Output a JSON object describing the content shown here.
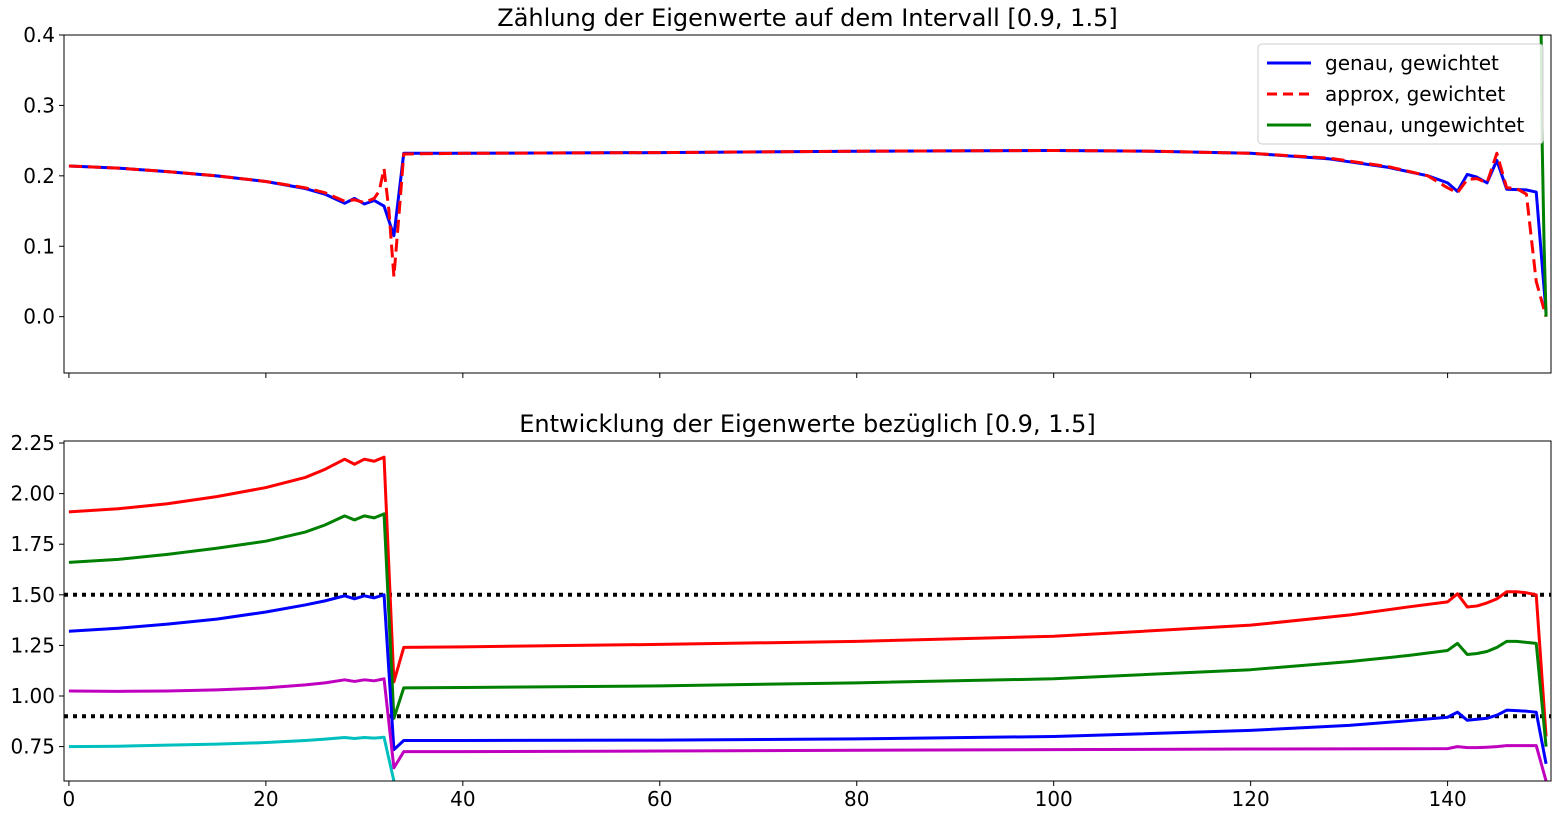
{
  "chart_data": [
    {
      "type": "line",
      "title": "Zählung der Eigenwerte auf dem Intervall [0.9, 1.5]",
      "xlabel": "",
      "ylabel": "",
      "xlim": [
        -0.5,
        150.5
      ],
      "ylim": [
        -0.08,
        0.4
      ],
      "x_ticks": [
        0,
        20,
        40,
        60,
        80,
        100,
        120,
        140
      ],
      "y_ticks": [
        0.0,
        0.1,
        0.2,
        0.3,
        0.4
      ],
      "y_tick_labels": [
        "0.0",
        "0.1",
        "0.2",
        "0.3",
        "0.4"
      ],
      "show_x_tick_labels": false,
      "grid": false,
      "legend_position": "upper right",
      "series": [
        {
          "name": "genau, gewichtet",
          "color": "#0000ff",
          "style": "solid",
          "points": [
            [
              0,
              0.214
            ],
            [
              5,
              0.211
            ],
            [
              10,
              0.206
            ],
            [
              15,
              0.2
            ],
            [
              20,
              0.192
            ],
            [
              24,
              0.182
            ],
            [
              26,
              0.174
            ],
            [
              28,
              0.161
            ],
            [
              29,
              0.168
            ],
            [
              30,
              0.16
            ],
            [
              31,
              0.165
            ],
            [
              32,
              0.157
            ],
            [
              33,
              0.115
            ],
            [
              34,
              0.232
            ],
            [
              40,
              0.232
            ],
            [
              60,
              0.233
            ],
            [
              80,
              0.235
            ],
            [
              100,
              0.236
            ],
            [
              110,
              0.235
            ],
            [
              120,
              0.232
            ],
            [
              128,
              0.224
            ],
            [
              134,
              0.212
            ],
            [
              138,
              0.2
            ],
            [
              140,
              0.19
            ],
            [
              141,
              0.178
            ],
            [
              142,
              0.202
            ],
            [
              143,
              0.198
            ],
            [
              144,
              0.19
            ],
            [
              145,
              0.222
            ],
            [
              146,
              0.181
            ],
            [
              148,
              0.18
            ],
            [
              149,
              0.177
            ],
            [
              150,
              0.005
            ]
          ]
        },
        {
          "name": "approx, gewichtet",
          "color": "#ff0000",
          "style": "dashed",
          "points": [
            [
              0,
              0.214
            ],
            [
              5,
              0.211
            ],
            [
              10,
              0.206
            ],
            [
              15,
              0.2
            ],
            [
              20,
              0.192
            ],
            [
              24,
              0.183
            ],
            [
              26,
              0.176
            ],
            [
              28,
              0.164
            ],
            [
              29,
              0.166
            ],
            [
              30,
              0.162
            ],
            [
              31,
              0.168
            ],
            [
              31.5,
              0.178
            ],
            [
              32,
              0.21
            ],
            [
              32.5,
              0.15
            ],
            [
              33,
              0.057
            ],
            [
              33.5,
              0.142
            ],
            [
              34,
              0.231
            ],
            [
              40,
              0.232
            ],
            [
              60,
              0.233
            ],
            [
              80,
              0.235
            ],
            [
              100,
              0.236
            ],
            [
              110,
              0.235
            ],
            [
              120,
              0.232
            ],
            [
              128,
              0.225
            ],
            [
              134,
              0.213
            ],
            [
              138,
              0.2
            ],
            [
              140,
              0.183
            ],
            [
              141,
              0.176
            ],
            [
              142,
              0.195
            ],
            [
              143,
              0.196
            ],
            [
              144,
              0.19
            ],
            [
              145,
              0.232
            ],
            [
              146,
              0.183
            ],
            [
              147,
              0.182
            ],
            [
              148,
              0.174
            ],
            [
              149,
              0.05
            ],
            [
              150,
              0.0
            ]
          ]
        },
        {
          "name": "genau, ungewichtet",
          "color": "#008000",
          "style": "solid",
          "points": [
            [
              149.5,
              0.4
            ],
            [
              149.6,
              0.25
            ],
            [
              149.8,
              0.1
            ],
            [
              150,
              0.0
            ]
          ]
        }
      ]
    },
    {
      "type": "line",
      "title": "Entwicklung der Eigenwerte bezüglich [0.9, 1.5]",
      "xlabel": "",
      "ylabel": "",
      "xlim": [
        -0.5,
        150.5
      ],
      "ylim": [
        0.58,
        2.26
      ],
      "x_ticks": [
        0,
        20,
        40,
        60,
        80,
        100,
        120,
        140
      ],
      "y_ticks": [
        0.75,
        1.0,
        1.25,
        1.5,
        1.75,
        2.0,
        2.25
      ],
      "y_tick_labels": [
        "0.75",
        "1.00",
        "1.25",
        "1.50",
        "1.75",
        "2.00",
        "2.25"
      ],
      "grid": false,
      "reference_lines": [
        {
          "y": 1.5,
          "color": "#000000",
          "style": "dotted"
        },
        {
          "y": 0.9,
          "color": "#000000",
          "style": "dotted"
        }
      ],
      "series": [
        {
          "color": "#ff0000",
          "points": [
            [
              0,
              1.91
            ],
            [
              5,
              1.925
            ],
            [
              10,
              1.95
            ],
            [
              15,
              1.985
            ],
            [
              20,
              2.03
            ],
            [
              24,
              2.08
            ],
            [
              26,
              2.12
            ],
            [
              28,
              2.17
            ],
            [
              29,
              2.145
            ],
            [
              30,
              2.17
            ],
            [
              31,
              2.16
            ],
            [
              32,
              2.18
            ],
            [
              33,
              1.07
            ],
            [
              34,
              1.24
            ],
            [
              40,
              1.243
            ],
            [
              60,
              1.255
            ],
            [
              80,
              1.27
            ],
            [
              100,
              1.295
            ],
            [
              120,
              1.35
            ],
            [
              130,
              1.4
            ],
            [
              136,
              1.44
            ],
            [
              140,
              1.465
            ],
            [
              141,
              1.505
            ],
            [
              142,
              1.44
            ],
            [
              143,
              1.445
            ],
            [
              144,
              1.46
            ],
            [
              145,
              1.48
            ],
            [
              146,
              1.515
            ],
            [
              147,
              1.515
            ],
            [
              148,
              1.51
            ],
            [
              149,
              1.5
            ],
            [
              150,
              0.8
            ]
          ]
        },
        {
          "color": "#008000",
          "points": [
            [
              0,
              1.66
            ],
            [
              5,
              1.675
            ],
            [
              10,
              1.7
            ],
            [
              15,
              1.73
            ],
            [
              20,
              1.765
            ],
            [
              24,
              1.81
            ],
            [
              26,
              1.845
            ],
            [
              28,
              1.89
            ],
            [
              29,
              1.87
            ],
            [
              30,
              1.89
            ],
            [
              31,
              1.88
            ],
            [
              32,
              1.9
            ],
            [
              33,
              0.89
            ],
            [
              34,
              1.04
            ],
            [
              40,
              1.042
            ],
            [
              60,
              1.05
            ],
            [
              80,
              1.065
            ],
            [
              100,
              1.085
            ],
            [
              120,
              1.13
            ],
            [
              130,
              1.17
            ],
            [
              136,
              1.2
            ],
            [
              140,
              1.225
            ],
            [
              141,
              1.26
            ],
            [
              142,
              1.205
            ],
            [
              143,
              1.21
            ],
            [
              144,
              1.22
            ],
            [
              145,
              1.24
            ],
            [
              146,
              1.27
            ],
            [
              147,
              1.27
            ],
            [
              148,
              1.265
            ],
            [
              149,
              1.26
            ],
            [
              150,
              0.75
            ]
          ]
        },
        {
          "color": "#0000ff",
          "points": [
            [
              0,
              1.32
            ],
            [
              5,
              1.335
            ],
            [
              10,
              1.355
            ],
            [
              15,
              1.38
            ],
            [
              20,
              1.415
            ],
            [
              24,
              1.45
            ],
            [
              26,
              1.47
            ],
            [
              28,
              1.495
            ],
            [
              29,
              1.48
            ],
            [
              30,
              1.495
            ],
            [
              31,
              1.485
            ],
            [
              32,
              1.5
            ],
            [
              33,
              0.735
            ],
            [
              34,
              0.78
            ],
            [
              40,
              0.78
            ],
            [
              60,
              0.782
            ],
            [
              80,
              0.788
            ],
            [
              100,
              0.8
            ],
            [
              120,
              0.83
            ],
            [
              130,
              0.855
            ],
            [
              136,
              0.878
            ],
            [
              140,
              0.895
            ],
            [
              141,
              0.92
            ],
            [
              142,
              0.88
            ],
            [
              143,
              0.885
            ],
            [
              144,
              0.89
            ],
            [
              145,
              0.905
            ],
            [
              146,
              0.93
            ],
            [
              147,
              0.928
            ],
            [
              148,
              0.925
            ],
            [
              149,
              0.92
            ],
            [
              150,
              0.665
            ]
          ]
        },
        {
          "color": "#bf00bf",
          "points": [
            [
              0,
              1.025
            ],
            [
              5,
              1.023
            ],
            [
              10,
              1.025
            ],
            [
              15,
              1.03
            ],
            [
              20,
              1.04
            ],
            [
              24,
              1.055
            ],
            [
              26,
              1.065
            ],
            [
              28,
              1.08
            ],
            [
              29,
              1.072
            ],
            [
              30,
              1.08
            ],
            [
              31,
              1.075
            ],
            [
              32,
              1.085
            ],
            [
              33,
              0.645
            ],
            [
              34,
              0.725
            ],
            [
              40,
              0.725
            ],
            [
              60,
              0.728
            ],
            [
              80,
              0.732
            ],
            [
              100,
              0.735
            ],
            [
              120,
              0.738
            ],
            [
              140,
              0.74
            ],
            [
              141,
              0.75
            ],
            [
              142,
              0.745
            ],
            [
              143,
              0.745
            ],
            [
              144,
              0.747
            ],
            [
              145,
              0.75
            ],
            [
              146,
              0.755
            ],
            [
              147,
              0.755
            ],
            [
              148,
              0.755
            ],
            [
              149,
              0.755
            ],
            [
              150,
              0.58
            ]
          ]
        },
        {
          "color": "#00bfbf",
          "points": [
            [
              0,
              0.75
            ],
            [
              5,
              0.752
            ],
            [
              10,
              0.757
            ],
            [
              15,
              0.762
            ],
            [
              20,
              0.77
            ],
            [
              24,
              0.78
            ],
            [
              26,
              0.787
            ],
            [
              28,
              0.795
            ],
            [
              29,
              0.79
            ],
            [
              30,
              0.795
            ],
            [
              31,
              0.792
            ],
            [
              32,
              0.796
            ],
            [
              33,
              0.58
            ]
          ]
        }
      ]
    }
  ]
}
